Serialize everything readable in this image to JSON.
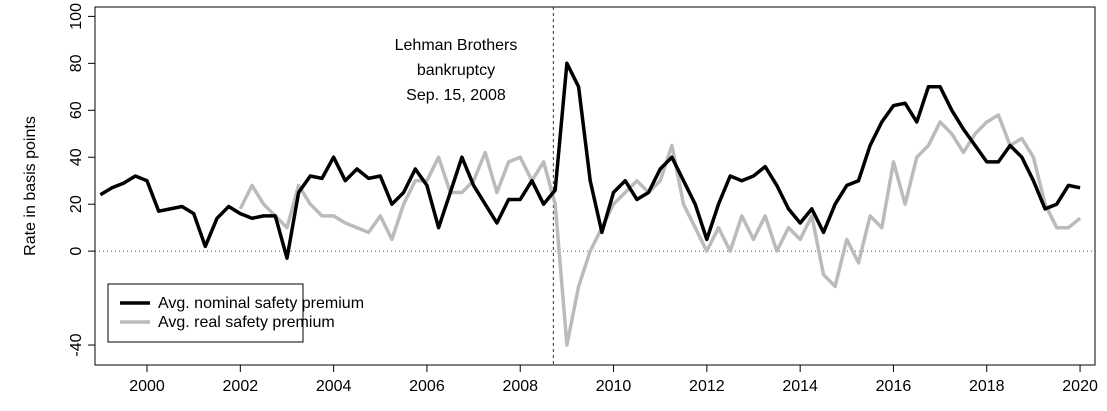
{
  "chart_data": {
    "type": "line",
    "ylabel": "Rate in basis points",
    "xlim": [
      1998.885,
      2020.32
    ],
    "ylim": [
      -48.5,
      104
    ],
    "xticks": [
      2000,
      2002,
      2004,
      2006,
      2008,
      2010,
      2012,
      2014,
      2016,
      2018,
      2020
    ],
    "yticks": [
      -40,
      0,
      20,
      40,
      60,
      80,
      100
    ],
    "hline": 0,
    "vline": 2008.71,
    "annotation": [
      "Lehman Brothers",
      "bankruptcy",
      "Sep. 15, 2008"
    ],
    "legend": "bottom-left",
    "series": [
      {
        "name": "Avg. nominal safety premium",
        "color": "#000000",
        "x": [
          1999,
          1999.25,
          1999.5,
          1999.75,
          2000,
          2000.25,
          2000.5,
          2000.75,
          2001,
          2001.25,
          2001.5,
          2001.75,
          2002,
          2002.25,
          2002.5,
          2002.75,
          2003,
          2003.25,
          2003.5,
          2003.75,
          2004,
          2004.25,
          2004.5,
          2004.75,
          2005,
          2005.25,
          2005.5,
          2005.75,
          2006,
          2006.25,
          2006.5,
          2006.75,
          2007,
          2007.25,
          2007.5,
          2007.75,
          2008,
          2008.25,
          2008.5,
          2008.75,
          2009,
          2009.25,
          2009.5,
          2009.75,
          2010,
          2010.25,
          2010.5,
          2010.75,
          2011,
          2011.25,
          2011.5,
          2011.75,
          2012,
          2012.25,
          2012.5,
          2012.75,
          2013,
          2013.25,
          2013.5,
          2013.75,
          2014,
          2014.25,
          2014.5,
          2014.75,
          2015,
          2015.25,
          2015.5,
          2015.75,
          2016,
          2016.25,
          2016.5,
          2016.75,
          2017,
          2017.25,
          2017.5,
          2017.75,
          2018,
          2018.25,
          2018.5,
          2018.75,
          2019,
          2019.25,
          2019.5,
          2019.75,
          2020
        ],
        "values": [
          24,
          27,
          29,
          32,
          30,
          17,
          18,
          19,
          16,
          2,
          14,
          19,
          16,
          14,
          15,
          15,
          -3,
          25,
          32,
          31,
          40,
          30,
          35,
          31,
          32,
          20,
          25,
          35,
          28,
          10,
          25,
          40,
          28,
          20,
          12,
          22,
          22,
          30,
          20,
          26,
          80,
          70,
          30,
          8,
          25,
          30,
          22,
          25,
          35,
          40,
          30,
          20,
          5,
          20,
          32,
          30,
          32,
          36,
          28,
          18,
          12,
          18,
          8,
          20,
          28,
          30,
          45,
          55,
          62,
          63,
          55,
          70,
          70,
          60,
          52,
          45,
          38,
          38,
          45,
          40,
          30,
          18,
          20,
          28,
          27
        ]
      },
      {
        "name": "Avg. real safety premium",
        "color": "#bbbbbb",
        "x": [
          2002,
          2002.25,
          2002.5,
          2002.75,
          2003,
          2003.25,
          2003.5,
          2003.75,
          2004,
          2004.25,
          2004.5,
          2004.75,
          2005,
          2005.25,
          2005.5,
          2005.75,
          2006,
          2006.25,
          2006.5,
          2006.75,
          2007,
          2007.25,
          2007.5,
          2007.75,
          2008,
          2008.25,
          2008.5,
          2008.75,
          2009,
          2009.25,
          2009.5,
          2009.75,
          2010,
          2010.25,
          2010.5,
          2010.75,
          2011,
          2011.25,
          2011.5,
          2011.75,
          2012,
          2012.25,
          2012.5,
          2012.75,
          2013,
          2013.25,
          2013.5,
          2013.75,
          2014,
          2014.25,
          2014.5,
          2014.75,
          2015,
          2015.25,
          2015.5,
          2015.75,
          2016,
          2016.25,
          2016.5,
          2016.75,
          2017,
          2017.25,
          2017.5,
          2017.75,
          2018,
          2018.25,
          2018.5,
          2018.75,
          2019,
          2019.25,
          2019.5,
          2019.75,
          2020
        ],
        "values": [
          18,
          28,
          20,
          15,
          10,
          28,
          20,
          15,
          15,
          12,
          10,
          8,
          15,
          5,
          20,
          30,
          30,
          40,
          25,
          25,
          30,
          42,
          25,
          38,
          40,
          30,
          38,
          20,
          -40,
          -15,
          0,
          10,
          20,
          25,
          30,
          25,
          30,
          45,
          20,
          10,
          0,
          10,
          0,
          15,
          5,
          15,
          0,
          10,
          5,
          15,
          -10,
          -15,
          5,
          -5,
          15,
          10,
          38,
          20,
          40,
          45,
          55,
          50,
          42,
          50,
          55,
          58,
          45,
          48,
          40,
          20,
          10,
          10,
          14
        ]
      }
    ]
  }
}
